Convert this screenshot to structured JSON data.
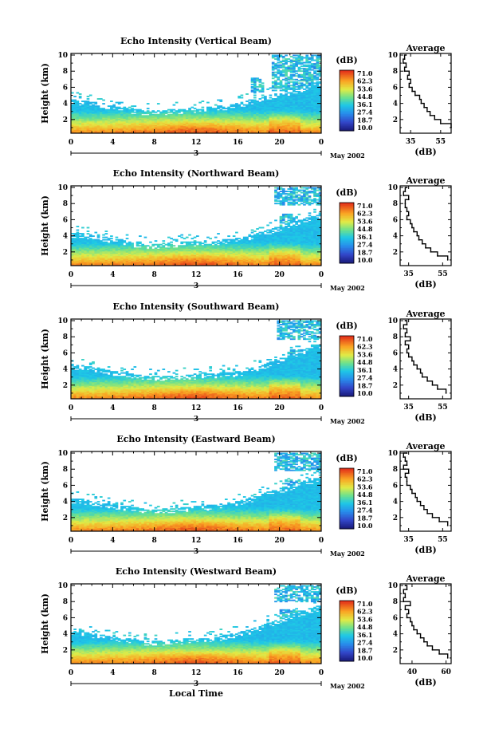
{
  "chart_data": [
    {
      "type": "heatmap",
      "title": "Echo Intensity (Vertical Beam)",
      "ylabel": "Height (km)",
      "xlabel": "",
      "x_ticks": [
        "0",
        "4",
        "8",
        "12",
        "16",
        "20",
        "0"
      ],
      "y_ticks": [
        "10",
        "8",
        "6",
        "4",
        "2"
      ],
      "xlim": [
        0,
        24
      ],
      "ylim": [
        0.3,
        10.2
      ],
      "day_marker": "3",
      "date_label": "May 2002",
      "echo_top_km": [
        4.5,
        4.4,
        4.2,
        4.0,
        3.9,
        3.6,
        3.3,
        3.2,
        3.1,
        3.2,
        3.3,
        3.4,
        3.4,
        3.5,
        3.7,
        3.8,
        4.0,
        4.4,
        4.8,
        5.0,
        5.3,
        5.6,
        6.0,
        6.4,
        6.8
      ],
      "upper_patches": [
        {
          "x": [
            19.3,
            24
          ],
          "y": [
            5.6,
            10
          ]
        },
        {
          "x": [
            17.2,
            18.4
          ],
          "y": [
            5.4,
            7.2
          ]
        }
      ],
      "colorbar": {
        "unit": "(dB)",
        "labels": [
          "71.0",
          "62.3",
          "53.6",
          "44.8",
          "36.1",
          "27.4",
          "18.7",
          "10.0"
        ],
        "range": [
          10.0,
          71.0
        ]
      },
      "average_profile": {
        "title": "Average",
        "xlabel": "(dB)",
        "x_ticks": [
          "35",
          "55"
        ],
        "xlim": [
          28,
          62
        ],
        "y_ticks": [
          "10",
          "8",
          "6",
          "4",
          "2"
        ],
        "height_km": [
          1.0,
          1.5,
          2.0,
          2.5,
          3.0,
          3.5,
          4.0,
          4.5,
          5.0,
          5.5,
          6.0,
          6.5,
          7.0,
          7.5,
          8.0,
          8.5,
          9.0,
          9.5,
          10.0
        ],
        "value_db": [
          62,
          55,
          51,
          48,
          46,
          44,
          42,
          41,
          38,
          36,
          34,
          35,
          33,
          34,
          31,
          32,
          30,
          31,
          32
        ]
      }
    },
    {
      "type": "heatmap",
      "title": "Echo Intensity (Northward Beam)",
      "ylabel": "Height (km)",
      "xlabel": "",
      "x_ticks": [
        "0",
        "4",
        "8",
        "12",
        "16",
        "20",
        "0"
      ],
      "y_ticks": [
        "10",
        "8",
        "6",
        "4",
        "2"
      ],
      "xlim": [
        0,
        24
      ],
      "ylim": [
        0.3,
        10.2
      ],
      "day_marker": "3",
      "date_label": "May 2002",
      "echo_top_km": [
        4.4,
        4.3,
        4.1,
        3.9,
        3.7,
        3.5,
        3.2,
        3.0,
        3.0,
        3.1,
        3.2,
        3.3,
        3.3,
        3.4,
        3.5,
        3.6,
        3.8,
        4.0,
        4.4,
        4.8,
        5.2,
        5.6,
        6.0,
        6.4,
        6.8
      ],
      "upper_patches": [
        {
          "x": [
            19.5,
            24
          ],
          "y": [
            7.8,
            10
          ]
        },
        {
          "x": [
            20.0,
            21.5
          ],
          "y": [
            5.2,
            6.8
          ]
        }
      ],
      "colorbar": {
        "unit": "(dB)",
        "labels": [
          "71.0",
          "62.3",
          "53.6",
          "44.8",
          "36.1",
          "27.4",
          "18.7",
          "10.0"
        ],
        "range": [
          10.0,
          71.0
        ]
      },
      "average_profile": {
        "title": "Average",
        "xlabel": "(dB)",
        "x_ticks": [
          "35",
          "55"
        ],
        "xlim": [
          30,
          60
        ],
        "y_ticks": [
          "10",
          "8",
          "6",
          "4",
          "2"
        ],
        "height_km": [
          1.0,
          1.5,
          2.0,
          2.5,
          3.0,
          3.5,
          4.0,
          4.5,
          5.0,
          5.5,
          6.0,
          6.5,
          7.0,
          7.5,
          8.0,
          8.5,
          9.0,
          9.5,
          10.0
        ],
        "value_db": [
          58,
          52,
          48,
          45,
          43,
          41,
          40,
          38,
          37,
          36,
          34,
          35,
          34,
          33,
          33,
          35,
          32,
          33,
          34
        ]
      }
    },
    {
      "type": "heatmap",
      "title": "Echo Intensity (Southward Beam)",
      "ylabel": "Height (km)",
      "xlabel": "",
      "x_ticks": [
        "0",
        "4",
        "8",
        "12",
        "16",
        "20",
        "0"
      ],
      "y_ticks": [
        "10",
        "8",
        "6",
        "4",
        "2"
      ],
      "xlim": [
        0,
        24
      ],
      "ylim": [
        0.3,
        10.2
      ],
      "day_marker": "3",
      "date_label": "May 2002",
      "echo_top_km": [
        4.6,
        4.5,
        4.3,
        4.0,
        3.8,
        3.6,
        3.4,
        3.2,
        3.1,
        3.2,
        3.2,
        3.3,
        3.3,
        3.4,
        3.5,
        3.6,
        3.7,
        4.0,
        4.4,
        4.9,
        5.3,
        5.8,
        6.3,
        6.8,
        7.2
      ],
      "upper_patches": [
        {
          "x": [
            19.8,
            24
          ],
          "y": [
            7.6,
            10
          ]
        },
        {
          "x": [
            21.0,
            22.5
          ],
          "y": [
            4.8,
            6.4
          ]
        }
      ],
      "colorbar": {
        "unit": "(dB)",
        "labels": [
          "71.0",
          "62.3",
          "53.6",
          "44.8",
          "36.1",
          "27.4",
          "18.7",
          "10.0"
        ],
        "range": [
          10.0,
          71.0
        ]
      },
      "average_profile": {
        "title": "Average",
        "xlabel": "(dB)",
        "x_ticks": [
          "35",
          "55"
        ],
        "xlim": [
          30,
          60
        ],
        "y_ticks": [
          "10",
          "8",
          "6",
          "4",
          "2"
        ],
        "height_km": [
          1.0,
          1.5,
          2.0,
          2.5,
          3.0,
          3.5,
          4.0,
          4.5,
          5.0,
          5.5,
          6.0,
          6.5,
          7.0,
          7.5,
          8.0,
          8.5,
          9.0,
          9.5,
          10.0
        ],
        "value_db": [
          57,
          52,
          49,
          46,
          43,
          42,
          40,
          38,
          37,
          35,
          34,
          35,
          33,
          36,
          33,
          34,
          32,
          34,
          33
        ]
      }
    },
    {
      "type": "heatmap",
      "title": "Echo Intensity (Eastward Beam)",
      "ylabel": "Height (km)",
      "xlabel": "",
      "x_ticks": [
        "0",
        "4",
        "8",
        "12",
        "16",
        "20",
        "0"
      ],
      "y_ticks": [
        "10",
        "8",
        "6",
        "4",
        "2"
      ],
      "xlim": [
        0,
        24
      ],
      "ylim": [
        0.3,
        10.2
      ],
      "day_marker": "3",
      "date_label": "May 2002",
      "echo_top_km": [
        4.4,
        4.3,
        4.1,
        3.9,
        3.7,
        3.5,
        3.3,
        3.1,
        3.0,
        3.1,
        3.2,
        3.3,
        3.4,
        3.5,
        3.6,
        3.8,
        4.0,
        4.4,
        4.8,
        5.2,
        5.6,
        6.0,
        6.4,
        6.8,
        7.0
      ],
      "upper_patches": [
        {
          "x": [
            19.5,
            24
          ],
          "y": [
            7.8,
            10
          ]
        },
        {
          "x": [
            20.5,
            22.0
          ],
          "y": [
            5.0,
            6.6
          ]
        }
      ],
      "colorbar": {
        "unit": "(dB)",
        "labels": [
          "71.0",
          "62.3",
          "53.6",
          "44.8",
          "36.1",
          "27.4",
          "18.7",
          "10.0"
        ],
        "range": [
          10.0,
          71.0
        ]
      },
      "average_profile": {
        "title": "Average",
        "xlabel": "(dB)",
        "x_ticks": [
          "35",
          "55"
        ],
        "xlim": [
          30,
          60
        ],
        "y_ticks": [
          "10",
          "8",
          "6",
          "4",
          "2"
        ],
        "height_km": [
          1.0,
          1.5,
          2.0,
          2.5,
          3.0,
          3.5,
          4.0,
          4.5,
          5.0,
          5.5,
          6.0,
          6.5,
          7.0,
          7.5,
          8.0,
          8.5,
          9.0,
          9.5,
          10.0
        ],
        "value_db": [
          58,
          53,
          49,
          46,
          44,
          42,
          40,
          39,
          37,
          36,
          34,
          34,
          33,
          35,
          32,
          34,
          33,
          32,
          34
        ]
      }
    },
    {
      "type": "heatmap",
      "title": "Echo Intensity (Westward Beam)",
      "ylabel": "Height (km)",
      "xlabel": "Local Time",
      "x_ticks": [
        "0",
        "4",
        "8",
        "12",
        "16",
        "20",
        "0"
      ],
      "y_ticks": [
        "10",
        "8",
        "6",
        "4",
        "2"
      ],
      "xlim": [
        0,
        24
      ],
      "ylim": [
        0.3,
        10.2
      ],
      "day_marker": "3",
      "date_label": "May 2002",
      "echo_top_km": [
        4.4,
        4.3,
        4.1,
        3.9,
        3.7,
        3.5,
        3.3,
        3.1,
        3.1,
        3.2,
        3.3,
        3.4,
        3.4,
        3.5,
        3.7,
        3.9,
        4.1,
        4.5,
        4.9,
        5.4,
        5.8,
        6.3,
        6.8,
        7.2,
        7.5
      ],
      "upper_patches": [
        {
          "x": [
            19.5,
            24
          ],
          "y": [
            8.0,
            10
          ]
        },
        {
          "x": [
            20.0,
            21.8
          ],
          "y": [
            5.2,
            7.0
          ]
        }
      ],
      "colorbar": {
        "unit": "(dB)",
        "labels": [
          "71.0",
          "62.3",
          "53.6",
          "44.8",
          "36.1",
          "27.4",
          "18.7",
          "10.0"
        ],
        "range": [
          10.0,
          71.0
        ]
      },
      "average_profile": {
        "title": "Average",
        "xlabel": "(dB)",
        "x_ticks": [
          "40",
          "60"
        ],
        "xlim": [
          33,
          63
        ],
        "y_ticks": [
          "10",
          "8",
          "6",
          "4",
          "2"
        ],
        "height_km": [
          1.0,
          1.5,
          2.0,
          2.5,
          3.0,
          3.5,
          4.0,
          4.5,
          5.0,
          5.5,
          6.0,
          6.5,
          7.0,
          7.5,
          8.0,
          8.5,
          9.0,
          9.5,
          10.0
        ],
        "value_db": [
          61,
          56,
          52,
          49,
          47,
          45,
          43,
          41,
          40,
          39,
          37,
          38,
          36,
          39,
          35,
          36,
          35,
          37,
          36
        ]
      }
    }
  ]
}
